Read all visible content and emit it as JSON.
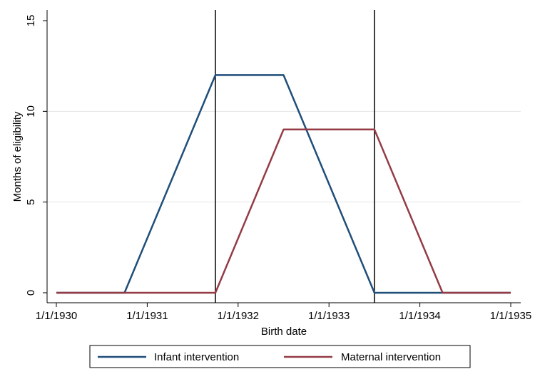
{
  "chart_data": {
    "type": "line",
    "xlabel": "Birth date",
    "ylabel": "Months of eligibility",
    "xlim": [
      "1/1/1930",
      "1/1/1935"
    ],
    "ylim": [
      0,
      15
    ],
    "x_ticks": [
      "1/1/1930",
      "1/1/1931",
      "1/1/1932",
      "1/1/1933",
      "1/1/1934",
      "1/1/1935"
    ],
    "y_ticks": [
      0,
      5,
      10,
      15
    ],
    "grid": "horizontal",
    "reference_lines_x": [
      "10/1/1931",
      "7/1/1933"
    ],
    "legend_position": "bottom",
    "series": [
      {
        "name": "Infant intervention",
        "color": "#1f4e79",
        "x": [
          "1/1/1930",
          "10/1/1930",
          "10/1/1931",
          "7/1/1932",
          "7/1/1933",
          "4/1/1934",
          "1/1/1935"
        ],
        "values": [
          0,
          0,
          12,
          12,
          0,
          0,
          0
        ]
      },
      {
        "name": "Maternal intervention",
        "color": "#943b45",
        "x": [
          "1/1/1930",
          "10/1/1931",
          "7/1/1932",
          "7/1/1933",
          "4/1/1934",
          "1/1/1935"
        ],
        "values": [
          0,
          0,
          9,
          9,
          0,
          0
        ]
      }
    ]
  }
}
